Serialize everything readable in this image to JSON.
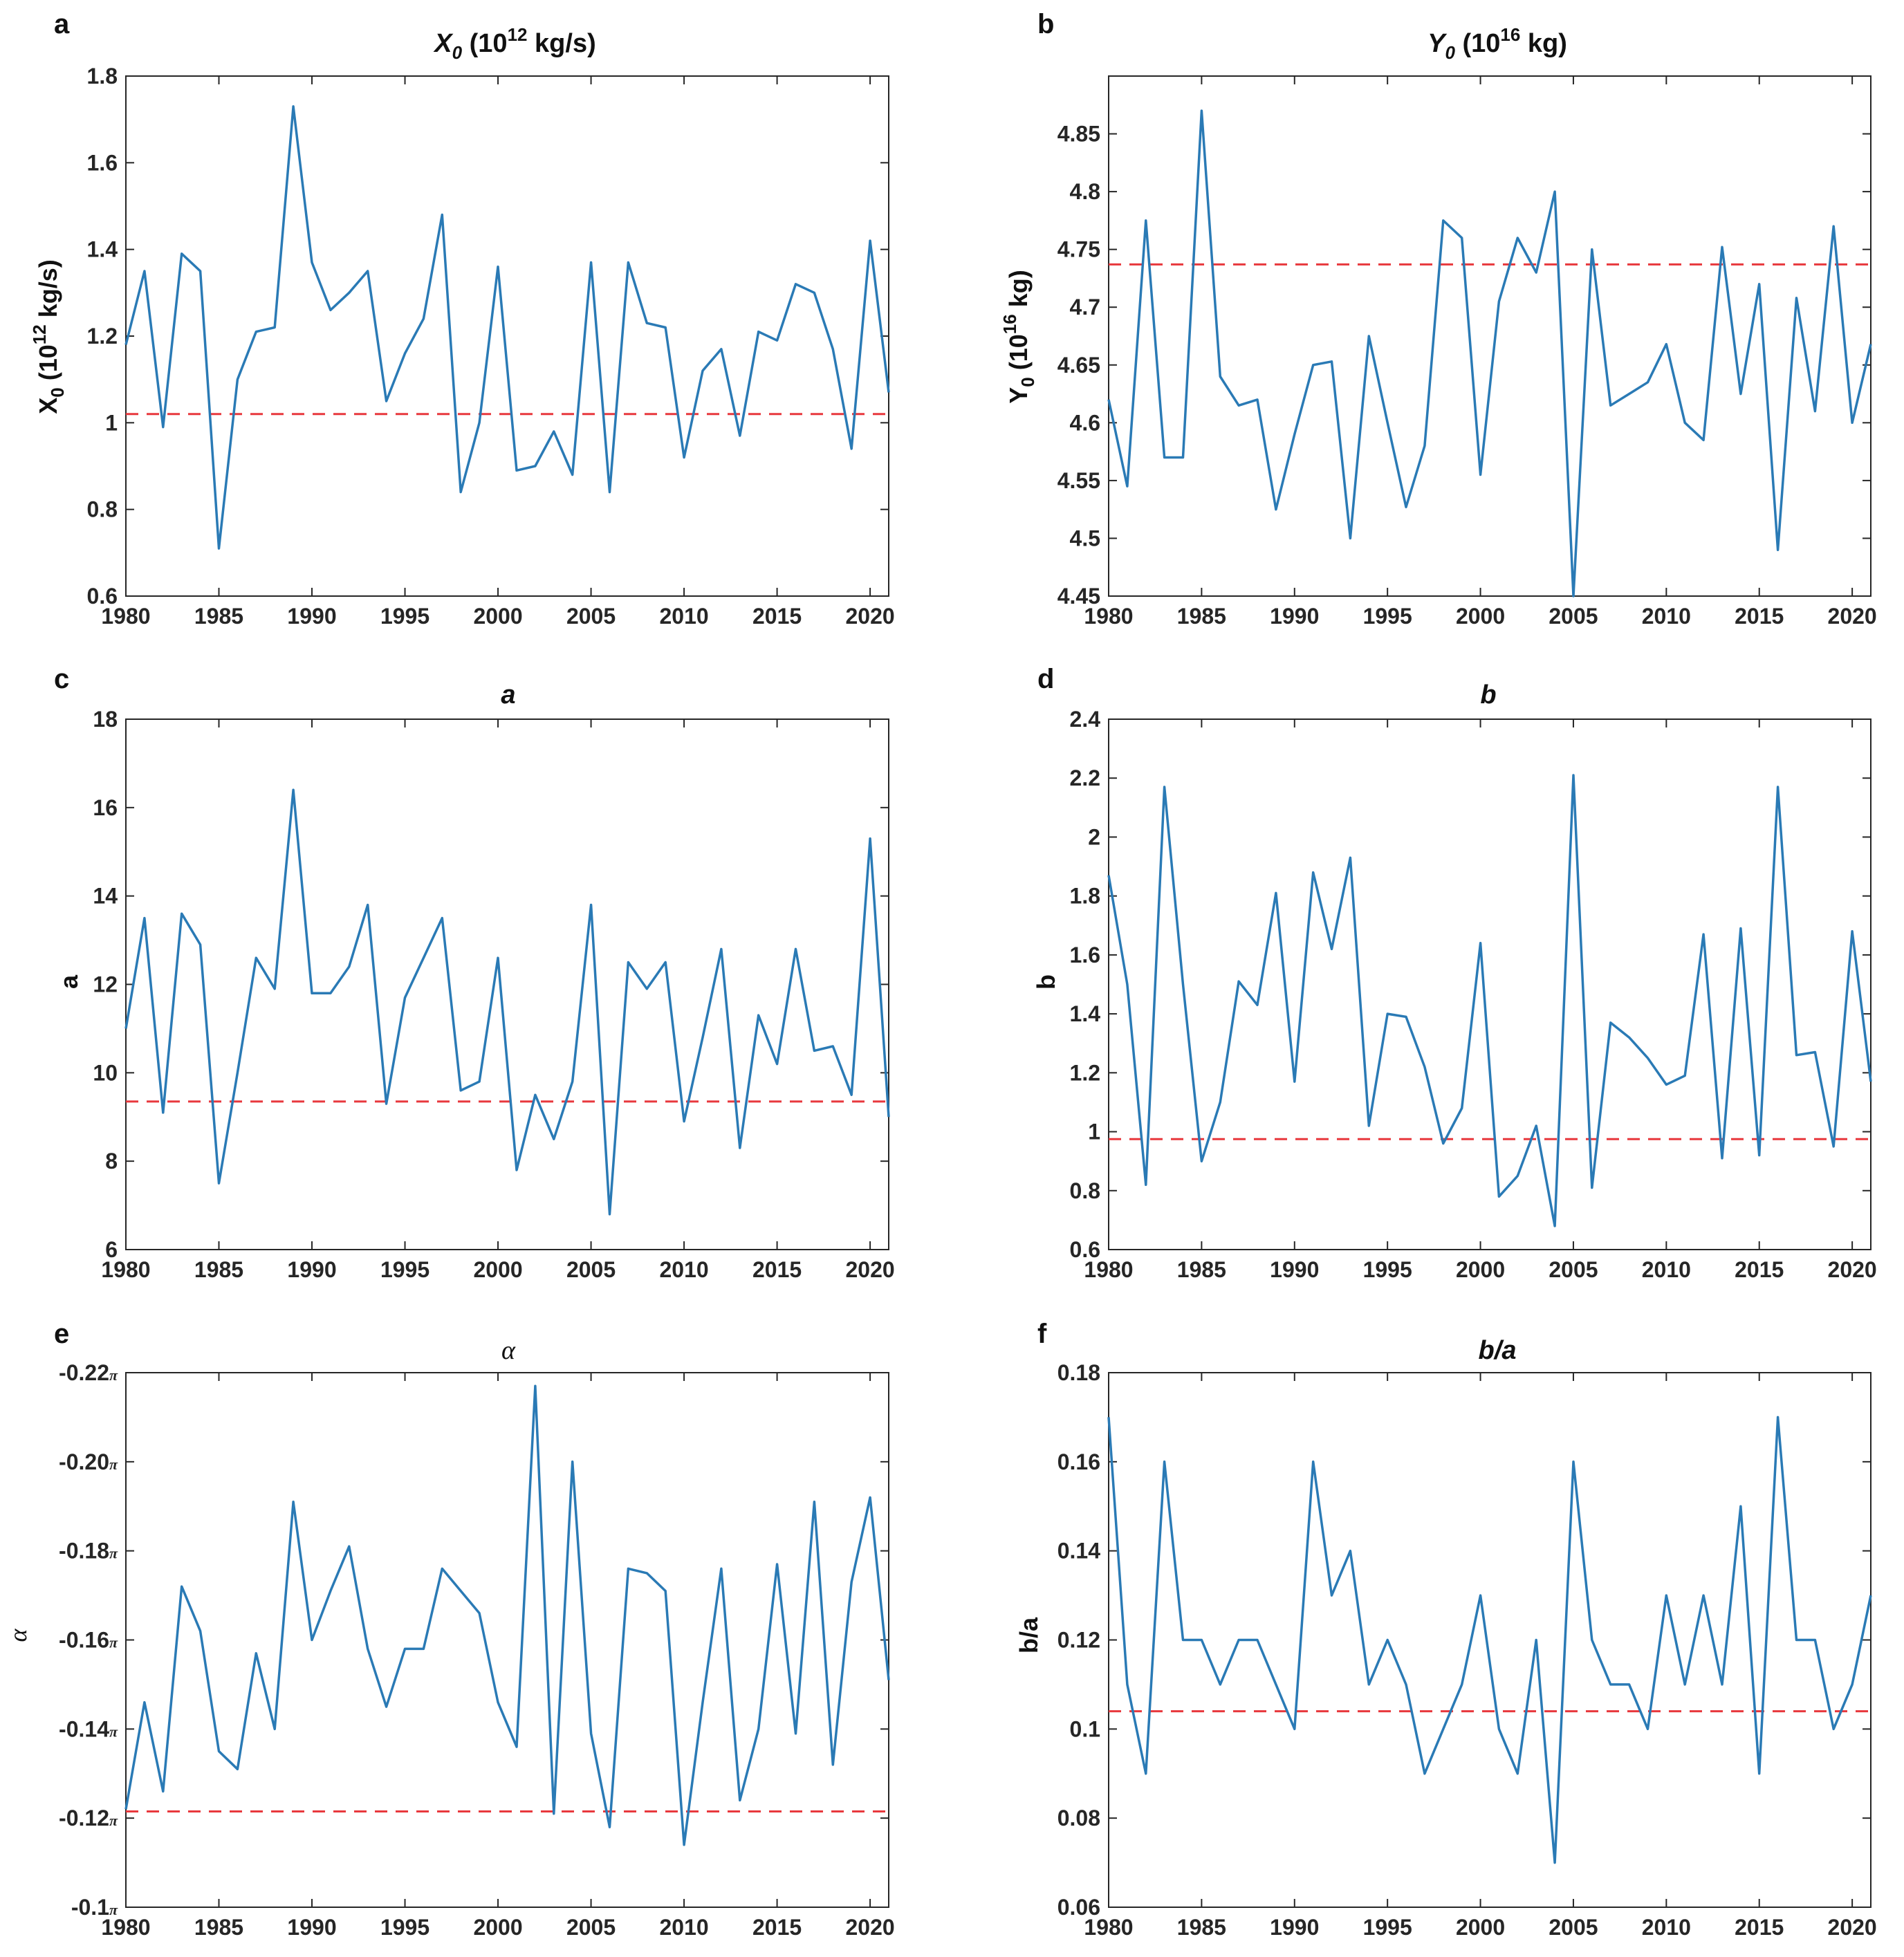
{
  "colors": {
    "series": "#2a7ab5",
    "reference": "#e8383d",
    "axis": "#262626"
  },
  "panels": [
    {
      "label": "a",
      "title_main": "X",
      "title_sub": "0",
      "title_rest": " (10",
      "title_sup": "12",
      "title_end": " kg/s)",
      "ylabel_main": "X",
      "ylabel_sub": "0",
      "ylabel_rest": " (10",
      "ylabel_sup": "12",
      "ylabel_end": " kg/s)"
    },
    {
      "label": "b",
      "title_main": "Y",
      "title_sub": "0",
      "title_rest": " (10",
      "title_sup": "16",
      "title_end": " kg)",
      "ylabel_main": "Y",
      "ylabel_sub": "0",
      "ylabel_rest": " (10",
      "ylabel_sup": "16",
      "ylabel_end": " kg)"
    },
    {
      "label": "c",
      "title_main": "a",
      "ylabel_main": "a"
    },
    {
      "label": "d",
      "title_main": "b",
      "ylabel_main": "b"
    },
    {
      "label": "e",
      "title_main": "α",
      "ylabel_main": "α"
    },
    {
      "label": "f",
      "title_main": "b/a",
      "ylabel_main": "b/a"
    }
  ],
  "chart_data": [
    {
      "type": "line",
      "panel": "a",
      "title": "X0 (10^12 kg/s)",
      "xlabel": "",
      "ylabel": "X0 (10^12 kg/s)",
      "xlim": [
        1980,
        2021
      ],
      "ylim": [
        0.6,
        1.8
      ],
      "xticks": [
        1980,
        1985,
        1990,
        1995,
        2000,
        2005,
        2010,
        2015,
        2020
      ],
      "xtick_labels": [
        "1980",
        "1985",
        "1990",
        "1995",
        "2000",
        "2005",
        "2010",
        "2015",
        "2020"
      ],
      "yticks": [
        0.6,
        0.8,
        1.0,
        1.2,
        1.4,
        1.6,
        1.8
      ],
      "ytick_labels": [
        "0.6",
        "0.8",
        "1",
        "1.2",
        "1.4",
        "1.6",
        "1.8"
      ],
      "reference_line": 1.02,
      "x": [
        1980,
        1981,
        1982,
        1983,
        1984,
        1985,
        1986,
        1987,
        1988,
        1989,
        1990,
        1991,
        1992,
        1993,
        1994,
        1995,
        1996,
        1997,
        1998,
        1999,
        2000,
        2001,
        2002,
        2003,
        2004,
        2005,
        2006,
        2007,
        2008,
        2009,
        2010,
        2011,
        2012,
        2013,
        2014,
        2015,
        2016,
        2017,
        2018,
        2019,
        2020,
        2021
      ],
      "values": [
        1.18,
        1.35,
        0.99,
        1.39,
        1.35,
        0.71,
        1.1,
        1.21,
        1.22,
        1.73,
        1.37,
        1.26,
        1.3,
        1.35,
        1.05,
        1.16,
        1.24,
        1.48,
        0.84,
        1.0,
        1.36,
        0.89,
        0.9,
        0.98,
        0.88,
        1.37,
        0.84,
        1.37,
        1.23,
        1.22,
        0.92,
        1.12,
        1.17,
        0.97,
        1.21,
        1.19,
        1.32,
        1.3,
        1.17,
        0.94,
        1.42,
        1.07
      ]
    },
    {
      "type": "line",
      "panel": "b",
      "title": "Y0 (10^16 kg)",
      "xlabel": "",
      "ylabel": "Y0 (10^16 kg)",
      "xlim": [
        1980,
        2021
      ],
      "ylim": [
        4.45,
        4.9
      ],
      "xticks": [
        1980,
        1985,
        1990,
        1995,
        2000,
        2005,
        2010,
        2015,
        2020
      ],
      "xtick_labels": [
        "1980",
        "1985",
        "1990",
        "1995",
        "2000",
        "2005",
        "2010",
        "2015",
        "2020"
      ],
      "yticks": [
        4.45,
        4.5,
        4.55,
        4.6,
        4.65,
        4.7,
        4.75,
        4.8,
        4.85
      ],
      "ytick_labels": [
        "4.45",
        "4.5",
        "4.55",
        "4.6",
        "4.65",
        "4.7",
        "4.75",
        "4.8",
        "4.85"
      ],
      "reference_line": 4.737,
      "x": [
        1980,
        1981,
        1982,
        1983,
        1984,
        1985,
        1986,
        1987,
        1988,
        1989,
        1990,
        1991,
        1992,
        1993,
        1994,
        1995,
        1996,
        1997,
        1998,
        1999,
        2000,
        2001,
        2002,
        2003,
        2004,
        2005,
        2006,
        2007,
        2008,
        2009,
        2010,
        2011,
        2012,
        2013,
        2014,
        2015,
        2016,
        2017,
        2018,
        2019,
        2020,
        2021
      ],
      "values": [
        4.62,
        4.545,
        4.775,
        4.57,
        4.57,
        4.87,
        4.64,
        4.615,
        4.62,
        4.525,
        4.59,
        4.65,
        4.653,
        4.5,
        4.675,
        4.6,
        4.527,
        4.58,
        4.775,
        4.76,
        4.555,
        4.705,
        4.76,
        4.73,
        4.8,
        4.45,
        4.75,
        4.615,
        4.625,
        4.635,
        4.668,
        4.6,
        4.585,
        4.752,
        4.625,
        4.72,
        4.49,
        4.708,
        4.61,
        4.77,
        4.6,
        4.668
      ]
    },
    {
      "type": "line",
      "panel": "c",
      "title": "a",
      "xlabel": "",
      "ylabel": "a",
      "xlim": [
        1980,
        2021
      ],
      "ylim": [
        6,
        18
      ],
      "xticks": [
        1980,
        1985,
        1990,
        1995,
        2000,
        2005,
        2010,
        2015,
        2020
      ],
      "xtick_labels": [
        "1980",
        "1985",
        "1990",
        "1995",
        "2000",
        "2005",
        "2010",
        "2015",
        "2020"
      ],
      "yticks": [
        6,
        8,
        10,
        12,
        14,
        16,
        18
      ],
      "ytick_labels": [
        "6",
        "8",
        "10",
        "12",
        "14",
        "16",
        "18"
      ],
      "reference_line": 9.35,
      "x": [
        1980,
        1981,
        1982,
        1983,
        1984,
        1985,
        1986,
        1987,
        1988,
        1989,
        1990,
        1991,
        1992,
        1993,
        1994,
        1995,
        1996,
        1997,
        1998,
        1999,
        2000,
        2001,
        2002,
        2003,
        2004,
        2005,
        2006,
        2007,
        2008,
        2009,
        2010,
        2011,
        2012,
        2013,
        2014,
        2015,
        2016,
        2017,
        2018,
        2019,
        2020,
        2021
      ],
      "values": [
        11.0,
        13.5,
        9.1,
        13.6,
        12.9,
        7.5,
        10.0,
        12.6,
        11.9,
        16.4,
        11.8,
        11.8,
        12.4,
        13.8,
        9.3,
        11.7,
        12.6,
        13.5,
        9.6,
        9.8,
        12.6,
        7.8,
        9.5,
        8.5,
        9.8,
        13.8,
        6.8,
        12.5,
        11.9,
        12.5,
        8.9,
        10.8,
        12.8,
        8.3,
        11.3,
        10.2,
        12.8,
        10.5,
        10.6,
        9.5,
        15.3,
        9.0
      ]
    },
    {
      "type": "line",
      "panel": "d",
      "title": "b",
      "xlabel": "",
      "ylabel": "b",
      "xlim": [
        1980,
        2021
      ],
      "ylim": [
        0.6,
        2.4
      ],
      "xticks": [
        1980,
        1985,
        1990,
        1995,
        2000,
        2005,
        2010,
        2015,
        2020
      ],
      "xtick_labels": [
        "1980",
        "1985",
        "1990",
        "1995",
        "2000",
        "2005",
        "2010",
        "2015",
        "2020"
      ],
      "yticks": [
        0.6,
        0.8,
        1.0,
        1.2,
        1.4,
        1.6,
        1.8,
        2.0,
        2.2,
        2.4
      ],
      "ytick_labels": [
        "0.6",
        "0.8",
        "1",
        "1.2",
        "1.4",
        "1.6",
        "1.8",
        "2",
        "2.2",
        "2.4"
      ],
      "reference_line": 0.975,
      "x": [
        1980,
        1981,
        1982,
        1983,
        1984,
        1985,
        1986,
        1987,
        1988,
        1989,
        1990,
        1991,
        1992,
        1993,
        1994,
        1995,
        1996,
        1997,
        1998,
        1999,
        2000,
        2001,
        2002,
        2003,
        2004,
        2005,
        2006,
        2007,
        2008,
        2009,
        2010,
        2011,
        2012,
        2013,
        2014,
        2015,
        2016,
        2017,
        2018,
        2019,
        2020,
        2021
      ],
      "values": [
        1.87,
        1.5,
        0.82,
        2.17,
        1.5,
        0.9,
        1.1,
        1.51,
        1.43,
        1.81,
        1.17,
        1.88,
        1.62,
        1.93,
        1.02,
        1.4,
        1.39,
        1.22,
        0.96,
        1.08,
        1.64,
        0.78,
        0.85,
        1.02,
        0.68,
        2.21,
        0.81,
        1.37,
        1.32,
        1.25,
        1.16,
        1.19,
        1.67,
        0.91,
        1.69,
        0.92,
        2.17,
        1.26,
        1.27,
        0.95,
        1.68,
        1.17
      ]
    },
    {
      "type": "line",
      "panel": "e",
      "title": "α",
      "xlabel": "",
      "ylabel": "α",
      "units": "multiples of π",
      "xlim": [
        1980,
        2021
      ],
      "ylim": [
        -0.1,
        -0.22
      ],
      "xticks": [
        1980,
        1985,
        1990,
        1995,
        2000,
        2005,
        2010,
        2015,
        2020
      ],
      "xtick_labels": [
        "1980",
        "1985",
        "1990",
        "1995",
        "2000",
        "2005",
        "2010",
        "2015",
        "2020"
      ],
      "yticks": [
        -0.1,
        -0.12,
        -0.14,
        -0.16,
        -0.18,
        -0.2,
        -0.22
      ],
      "ytick_labels": [
        "-0.1",
        "-0.12",
        "-0.14",
        "-0.16",
        "-0.18",
        "-0.20",
        "-0.22"
      ],
      "ytick_suffix": "π",
      "reference_line": -0.1215,
      "x": [
        1980,
        1981,
        1982,
        1983,
        1984,
        1985,
        1986,
        1987,
        1988,
        1989,
        1990,
        1991,
        1992,
        1993,
        1994,
        1995,
        1996,
        1997,
        1998,
        1999,
        2000,
        2001,
        2002,
        2003,
        2004,
        2005,
        2006,
        2007,
        2008,
        2009,
        2010,
        2011,
        2012,
        2013,
        2014,
        2015,
        2016,
        2017,
        2018,
        2019,
        2020,
        2021
      ],
      "values": [
        -0.122,
        -0.146,
        -0.126,
        -0.172,
        -0.162,
        -0.135,
        -0.131,
        -0.157,
        -0.14,
        -0.191,
        -0.16,
        -0.171,
        -0.181,
        -0.158,
        -0.145,
        -0.158,
        -0.158,
        -0.176,
        -0.171,
        -0.166,
        -0.146,
        -0.136,
        -0.217,
        -0.121,
        -0.2,
        -0.139,
        -0.118,
        -0.176,
        -0.175,
        -0.171,
        -0.114,
        -0.146,
        -0.176,
        -0.124,
        -0.14,
        -0.177,
        -0.139,
        -0.191,
        -0.132,
        -0.173,
        -0.192,
        -0.151
      ]
    },
    {
      "type": "line",
      "panel": "f",
      "title": "b/a",
      "xlabel": "",
      "ylabel": "b/a",
      "xlim": [
        1980,
        2021
      ],
      "ylim": [
        0.06,
        0.18
      ],
      "xticks": [
        1980,
        1985,
        1990,
        1995,
        2000,
        2005,
        2010,
        2015,
        2020
      ],
      "xtick_labels": [
        "1980",
        "1985",
        "1990",
        "1995",
        "2000",
        "2005",
        "2010",
        "2015",
        "2020"
      ],
      "yticks": [
        0.06,
        0.08,
        0.1,
        0.12,
        0.14,
        0.16,
        0.18
      ],
      "ytick_labels": [
        "0.06",
        "0.08",
        "0.1",
        "0.12",
        "0.14",
        "0.16",
        "0.18"
      ],
      "reference_line": 0.104,
      "x": [
        1980,
        1981,
        1982,
        1983,
        1984,
        1985,
        1986,
        1987,
        1988,
        1989,
        1990,
        1991,
        1992,
        1993,
        1994,
        1995,
        1996,
        1997,
        1998,
        1999,
        2000,
        2001,
        2002,
        2003,
        2004,
        2005,
        2006,
        2007,
        2008,
        2009,
        2010,
        2011,
        2012,
        2013,
        2014,
        2015,
        2016,
        2017,
        2018,
        2019,
        2020,
        2021
      ],
      "values": [
        0.17,
        0.11,
        0.09,
        0.16,
        0.12,
        0.12,
        0.11,
        0.12,
        0.12,
        0.11,
        0.1,
        0.16,
        0.13,
        0.14,
        0.11,
        0.12,
        0.11,
        0.09,
        0.1,
        0.11,
        0.13,
        0.1,
        0.09,
        0.12,
        0.07,
        0.16,
        0.12,
        0.11,
        0.11,
        0.1,
        0.13,
        0.11,
        0.13,
        0.11,
        0.15,
        0.09,
        0.17,
        0.12,
        0.12,
        0.1,
        0.11,
        0.13
      ]
    }
  ]
}
